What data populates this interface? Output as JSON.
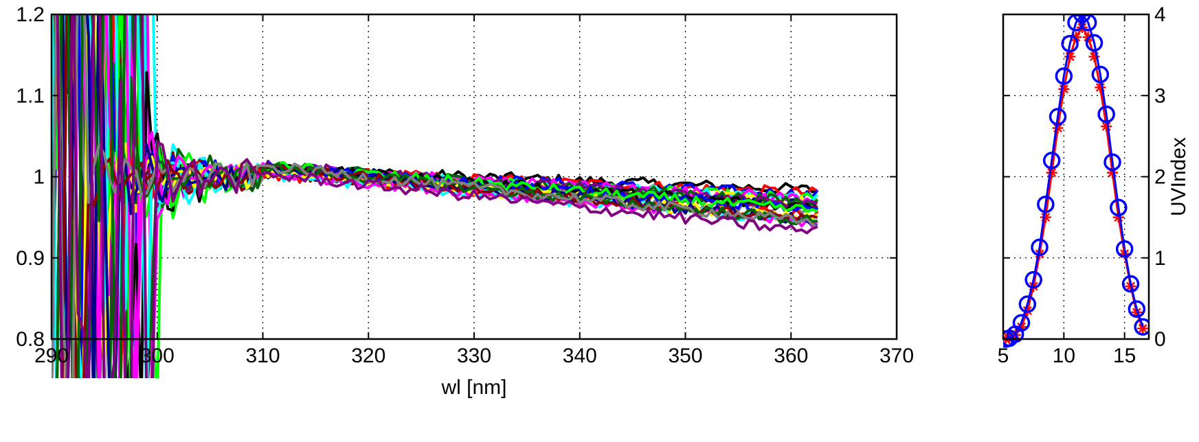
{
  "chart_data": [
    {
      "type": "line",
      "title": "",
      "xlabel": "wl [nm]",
      "ylabel": "",
      "xlim": [
        290,
        370
      ],
      "ylim": [
        0.8,
        1.2
      ],
      "grid": true,
      "x_ticks": [
        "290",
        "300",
        "310",
        "320",
        "330",
        "340",
        "350",
        "360",
        "370"
      ],
      "y_ticks": [
        "0.8",
        "0.9",
        "1",
        "1.1",
        "1.2"
      ],
      "legend": "none",
      "series_colors": [
        "#000000",
        "#ff0000",
        "#0000ff",
        "#00ff00",
        "#00ffff",
        "#ffff00",
        "#ff00ff",
        "#00008b",
        "#8b0000",
        "#006400",
        "#808080",
        "#800080"
      ],
      "x_start": 290,
      "x_end": 362.5,
      "x_step": 0.5,
      "note_curves": "many spectral ratio curves; values near 1 for wl >= 305 nm, oscillating strongly below 300 nm"
    },
    {
      "type": "line",
      "title": "",
      "xlabel": "",
      "ylabel": "UVIndex",
      "xlim": [
        5,
        17
      ],
      "ylim": [
        0,
        4
      ],
      "grid": true,
      "x_ticks": [
        "5",
        "10",
        "15"
      ],
      "y_ticks": [
        "0",
        "1",
        "2",
        "3",
        "4"
      ],
      "y_axis_side": "right",
      "series": [
        {
          "marker": "asterisk",
          "color": "#ff0000",
          "x": [
            5.2,
            5.5,
            6.0,
            6.5,
            7.0,
            7.5,
            8.0,
            8.5,
            9.0,
            9.5,
            10.0,
            10.5,
            11.0,
            11.5,
            12.0,
            12.5,
            13.0,
            13.5,
            14.0,
            14.5,
            15.0,
            15.5,
            16.0,
            16.5
          ],
          "values": [
            0.0,
            0.01,
            0.05,
            0.15,
            0.35,
            0.65,
            1.05,
            1.5,
            2.05,
            2.6,
            3.08,
            3.48,
            3.72,
            3.84,
            3.72,
            3.48,
            3.1,
            2.62,
            2.05,
            1.5,
            1.05,
            0.65,
            0.33,
            0.13
          ]
        },
        {
          "marker": "circle",
          "color": "#0000ff",
          "x": [
            5.2,
            5.5,
            6.0,
            6.5,
            7.0,
            7.5,
            8.0,
            8.5,
            9.0,
            9.5,
            10.0,
            10.5,
            11.0,
            11.5,
            12.0,
            12.5,
            13.0,
            13.5,
            14.0,
            14.5,
            15.0,
            15.5,
            16.0,
            16.5
          ],
          "values": [
            0.0,
            0.01,
            0.06,
            0.2,
            0.43,
            0.73,
            1.13,
            1.66,
            2.2,
            2.74,
            3.24,
            3.64,
            3.9,
            4.0,
            3.9,
            3.65,
            3.26,
            2.77,
            2.18,
            1.62,
            1.11,
            0.68,
            0.37,
            0.15
          ]
        }
      ]
    }
  ]
}
